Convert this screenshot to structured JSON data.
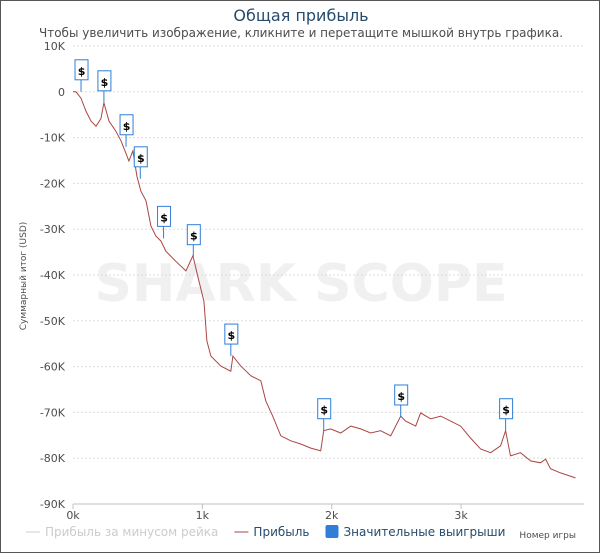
{
  "chart_data": {
    "type": "line",
    "title": "Общая прибыль",
    "subtitle": "Чтобы увеличить изображение, кликните и перетащите мышкой внутрь графика.",
    "xlabel": "Номер игры",
    "ylabel": "Суммарный итог (USD)",
    "xlim": [
      0,
      3950
    ],
    "ylim": [
      -90000,
      10000
    ],
    "x_ticks": [
      {
        "v": 0,
        "label": "0k"
      },
      {
        "v": 1000,
        "label": "1k"
      },
      {
        "v": 2000,
        "label": "2k"
      },
      {
        "v": 3000,
        "label": "3k"
      }
    ],
    "y_ticks": [
      {
        "v": 10000,
        "label": "10K"
      },
      {
        "v": 0,
        "label": "0"
      },
      {
        "v": -10000,
        "label": "-10K"
      },
      {
        "v": -20000,
        "label": "-20K"
      },
      {
        "v": -30000,
        "label": "-30K"
      },
      {
        "v": -40000,
        "label": "-40K"
      },
      {
        "v": -50000,
        "label": "-50K"
      },
      {
        "v": -60000,
        "label": "-60K"
      },
      {
        "v": -70000,
        "label": "-70K"
      },
      {
        "v": -80000,
        "label": "-80K"
      },
      {
        "v": -90000,
        "label": "-90K"
      }
    ],
    "grid": true,
    "legend_position": "bottom",
    "watermark": "SHARK SCOPE",
    "series": [
      {
        "name": "Прибыль за минусом рейка",
        "color": "#cccccc",
        "hidden": true,
        "x": [],
        "y": []
      },
      {
        "name": "Прибыль",
        "color": "#aa4643",
        "x": [
          0,
          23,
          62,
          100,
          139,
          178,
          216,
          239,
          278,
          332,
          371,
          402,
          432,
          463,
          494,
          525,
          564,
          602,
          641,
          680,
          718,
          795,
          873,
          927,
          973,
          1012,
          1035,
          1066,
          1143,
          1220,
          1236,
          1297,
          1375,
          1452,
          1490,
          1544,
          1606,
          1683,
          1760,
          1838,
          1915,
          1938,
          1992,
          2069,
          2147,
          2224,
          2301,
          2378,
          2456,
          2533,
          2571,
          2649,
          2687,
          2764,
          2842,
          2919,
          2996,
          3073,
          3151,
          3228,
          3305,
          3344,
          3382,
          3459,
          3537,
          3614,
          3653,
          3691,
          3768,
          3884
        ],
        "y": [
          0,
          0,
          -1400,
          -4200,
          -6400,
          -7500,
          -5900,
          -2400,
          -6400,
          -8600,
          -10700,
          -12900,
          -15100,
          -12900,
          -18400,
          -21700,
          -23800,
          -29300,
          -31500,
          -32600,
          -34800,
          -37000,
          -39100,
          -35800,
          -41300,
          -45700,
          -54400,
          -57700,
          -59900,
          -61000,
          -57700,
          -59900,
          -62000,
          -63100,
          -67500,
          -70800,
          -75100,
          -76200,
          -76900,
          -77800,
          -78400,
          -74000,
          -73600,
          -74500,
          -73000,
          -73600,
          -74500,
          -74000,
          -75100,
          -70800,
          -71900,
          -73000,
          -70100,
          -71400,
          -70800,
          -71900,
          -73000,
          -75600,
          -78000,
          -78800,
          -77300,
          -74000,
          -79500,
          -78800,
          -80600,
          -81000,
          -80200,
          -82300,
          -83200,
          -84300
        ]
      },
      {
        "name": "Значительные выигрыши",
        "color": "#2f7ed8",
        "flag_title": "$",
        "x": [
          62,
          239,
          410,
          520,
          700,
          930,
          1220,
          1938,
          2533,
          3344
        ],
        "y": [
          0,
          -2400,
          -12000,
          -19000,
          -32000,
          -36000,
          -57700,
          -74000,
          -71000,
          -74000
        ]
      }
    ]
  }
}
